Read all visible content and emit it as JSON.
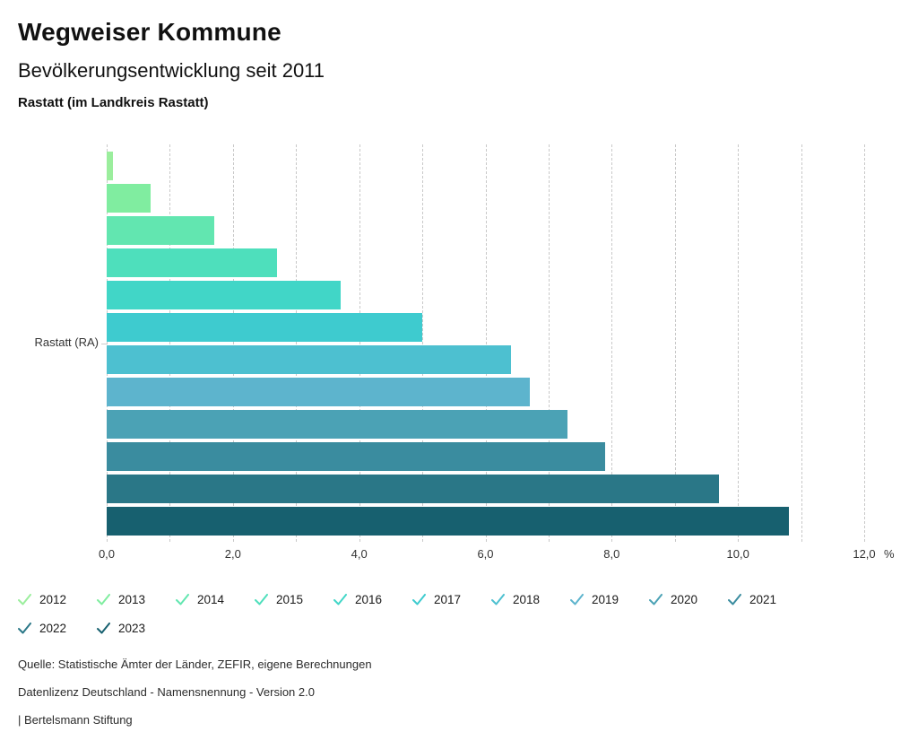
{
  "header": {
    "title": "Wegweiser Kommune",
    "subtitle": "Bevölkerungsentwicklung seit 2011",
    "region": "Rastatt (im Landkreis Rastatt)"
  },
  "chart_data": {
    "type": "bar",
    "orientation": "horizontal",
    "group_label": "Rastatt (RA)",
    "unit": "%",
    "categories": [
      "2012",
      "2013",
      "2014",
      "2015",
      "2016",
      "2017",
      "2018",
      "2019",
      "2020",
      "2021",
      "2022",
      "2023"
    ],
    "values": [
      0.1,
      0.7,
      1.7,
      2.7,
      3.7,
      5.0,
      6.4,
      6.7,
      7.3,
      7.9,
      9.7,
      10.8
    ],
    "colors": [
      "#9BEE9D",
      "#80EDA0",
      "#62E6B0",
      "#4EDFBC",
      "#41D6C7",
      "#3ECBCF",
      "#4DC0D0",
      "#5DB4CD",
      "#4BA2B5",
      "#3A8C9F",
      "#2A7787",
      "#17606F"
    ],
    "xlim": [
      0,
      12
    ],
    "grid_step": 1,
    "x_tick_values": [
      0,
      2,
      4,
      6,
      8,
      10,
      12
    ],
    "x_tick_labels": [
      "0,0",
      "2,0",
      "4,0",
      "6,0",
      "8,0",
      "10,0",
      "12,0"
    ],
    "grid": "vertical-dashed",
    "legend_position": "bottom"
  },
  "legend": {
    "items": [
      {
        "label": "2012",
        "color": "#9BEE9D"
      },
      {
        "label": "2013",
        "color": "#80EDA0"
      },
      {
        "label": "2014",
        "color": "#62E6B0"
      },
      {
        "label": "2015",
        "color": "#4EDFBC"
      },
      {
        "label": "2016",
        "color": "#41D6C7"
      },
      {
        "label": "2017",
        "color": "#3ECBCF"
      },
      {
        "label": "2018",
        "color": "#4DC0D0"
      },
      {
        "label": "2019",
        "color": "#5DB4CD"
      },
      {
        "label": "2020",
        "color": "#4BA2B5"
      },
      {
        "label": "2021",
        "color": "#3A8C9F"
      },
      {
        "label": "2022",
        "color": "#2A7787"
      },
      {
        "label": "2023",
        "color": "#17606F"
      }
    ]
  },
  "footer": {
    "source": "Quelle: Statistische Ämter der Länder, ZEFIR, eigene Berechnungen",
    "license": "Datenlizenz Deutschland - Namensnennung - Version 2.0",
    "attribution": "| Bertelsmann Stiftung"
  }
}
